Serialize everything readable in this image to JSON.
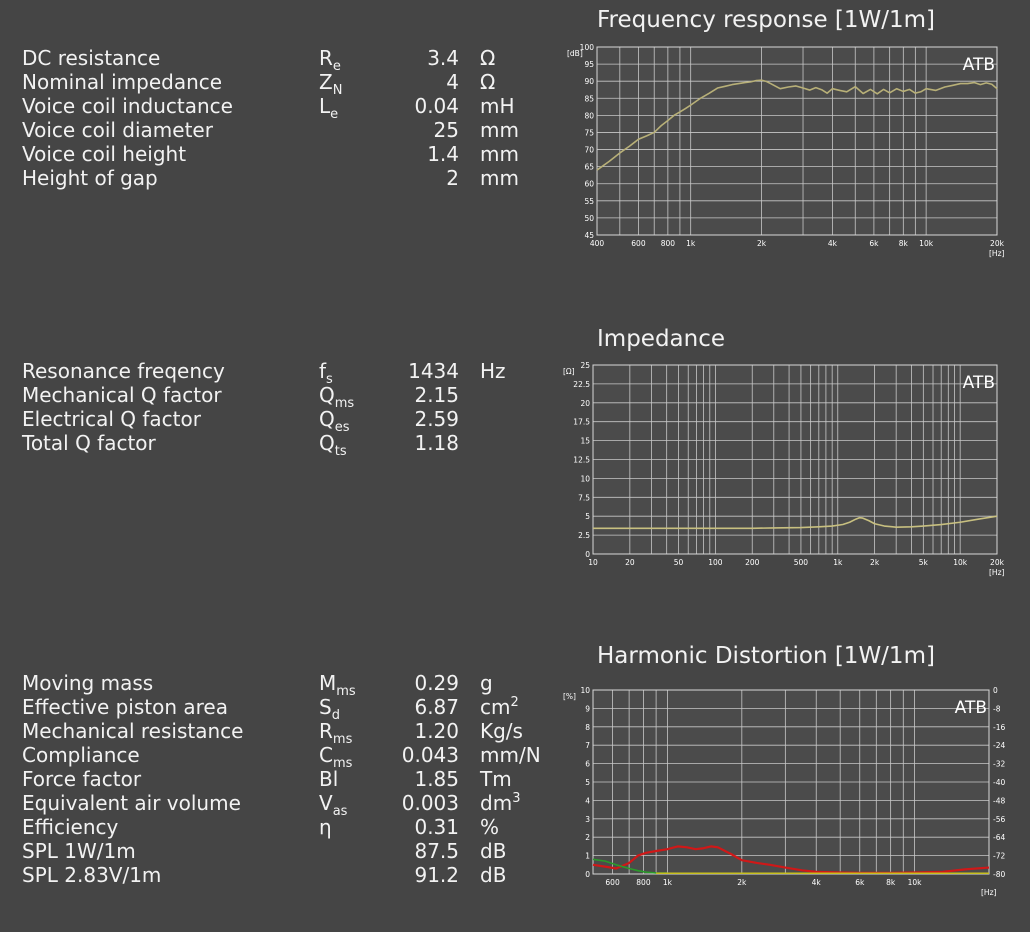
{
  "param_groups": [
    {
      "top": 46,
      "rows": [
        {
          "name": "DC resistance",
          "sym": "R",
          "sub": "e",
          "value": "3.4",
          "unit": "Ω"
        },
        {
          "name": "Nominal impedance",
          "sym": "Z",
          "sub": "N",
          "value": "4",
          "unit": "Ω"
        },
        {
          "name": "Voice coil inductance",
          "sym": "L",
          "sub": "e",
          "value": "0.04",
          "unit": "mH"
        },
        {
          "name": "Voice coil diameter",
          "sym": "",
          "sub": "",
          "value": "25",
          "unit": "mm"
        },
        {
          "name": "Voice coil height",
          "sym": "",
          "sub": "",
          "value": "1.4",
          "unit": "mm"
        },
        {
          "name": "Height of gap",
          "sym": "",
          "sub": "",
          "value": "2",
          "unit": "mm"
        }
      ]
    },
    {
      "top": 359,
      "rows": [
        {
          "name": "Resonance freqency",
          "sym": "f",
          "sub": "s",
          "value": "1434",
          "unit": "Hz"
        },
        {
          "name": "Mechanical Q factor",
          "sym": "Q",
          "sub": "ms",
          "value": "2.15",
          "unit": ""
        },
        {
          "name": "Electrical Q factor",
          "sym": "Q",
          "sub": "es",
          "value": "2.59",
          "unit": ""
        },
        {
          "name": "Total Q factor",
          "sym": "Q",
          "sub": "ts",
          "value": "1.18",
          "unit": ""
        }
      ]
    },
    {
      "top": 671,
      "rows": [
        {
          "name": "Moving mass",
          "sym": "M",
          "sub": "ms",
          "value": "0.29",
          "unit": "g",
          "sup": ""
        },
        {
          "name": "Effective piston area",
          "sym": "S",
          "sub": "d",
          "value": "6.87",
          "unit": "cm",
          "sup": "2"
        },
        {
          "name": "Mechanical resistance",
          "sym": "R",
          "sub": "ms",
          "value": "1.20",
          "unit": "Kg/s",
          "sup": ""
        },
        {
          "name": "Compliance",
          "sym": "C",
          "sub": "ms",
          "value": "0.043",
          "unit": "mm/N",
          "sup": ""
        },
        {
          "name": "Force factor",
          "sym": "Bl",
          "sub": "",
          "value": "1.85",
          "unit": "Tm",
          "sup": ""
        },
        {
          "name": "Equivalent air volume",
          "sym": "V",
          "sub": "as",
          "value": "0.003",
          "unit": "dm",
          "sup": "3"
        },
        {
          "name": "Efficiency",
          "sym": "η",
          "sub": "",
          "value": "0.31",
          "unit": "%",
          "sup": ""
        },
        {
          "name": "SPL 1W/1m",
          "sym": "",
          "sub": "",
          "value": "87.5",
          "unit": "dB",
          "sup": ""
        },
        {
          "name": "SPL 2.83V/1m",
          "sym": "",
          "sub": "",
          "value": "91.2",
          "unit": "dB",
          "sup": ""
        }
      ]
    }
  ],
  "colors": {
    "background": "#454545",
    "plot_bg": "#4b4b4b",
    "grid": "#c8c8c8",
    "frequency_curve": "#b8b078",
    "impedance_curve": "#c8c080",
    "distortion_red": "#d01818",
    "distortion_green": "#2a9a2a",
    "distortion_yellow": "#c8c020"
  },
  "chart_data": [
    {
      "type": "line",
      "title": "Frequency response [1W/1m]",
      "watermark": "ATB",
      "yunit": "[dB]",
      "xunit": "[Hz]",
      "xscale": "log",
      "xlim": [
        400,
        20000
      ],
      "ylim": [
        45,
        100
      ],
      "yticks": [
        45,
        50,
        55,
        60,
        65,
        70,
        75,
        80,
        85,
        90,
        95,
        100
      ],
      "xticks": [
        400,
        600,
        800,
        1000,
        2000,
        4000,
        6000,
        8000,
        10000,
        20000
      ],
      "xtick_labels": [
        "400",
        "600",
        "800",
        "1k",
        "2k",
        "4k",
        "6k",
        "8k",
        "10k",
        "20k"
      ],
      "grid": true,
      "series": [
        {
          "x": [
            400,
            450,
            500,
            550,
            600,
            650,
            700,
            750,
            800,
            850,
            900,
            950,
            1000,
            1100,
            1200,
            1300,
            1400,
            1500,
            1600,
            1700,
            1800,
            1900,
            2000,
            2100,
            2200,
            2400,
            2600,
            2800,
            3000,
            3200,
            3400,
            3600,
            3800,
            4000,
            4300,
            4600,
            5000,
            5400,
            5800,
            6200,
            6600,
            7000,
            7500,
            8000,
            8500,
            9000,
            9500,
            10000,
            11000,
            12000,
            13000,
            14000,
            15000,
            16000,
            17000,
            18000,
            19000,
            20000
          ],
          "y": [
            64,
            66.5,
            69,
            71,
            73,
            74,
            75,
            77,
            78.5,
            80,
            81,
            82,
            83,
            85,
            86.5,
            88,
            88.5,
            89,
            89.3,
            89.6,
            89.8,
            90.2,
            90.3,
            89.9,
            89.2,
            87.8,
            88.3,
            88.6,
            88.0,
            87.4,
            88.1,
            87.5,
            86.5,
            87.8,
            87.3,
            86.9,
            88.4,
            86.4,
            87.6,
            86.3,
            87.6,
            86.6,
            87.8,
            87.0,
            87.6,
            86.5,
            86.9,
            87.8,
            87.3,
            88.3,
            88.8,
            89.3,
            89.3,
            89.6,
            89.0,
            89.5,
            89.1,
            87.8
          ]
        }
      ]
    },
    {
      "type": "line",
      "title": "Impedance",
      "watermark": "ATB",
      "yunit": "[Ω]",
      "xunit": "[Hz]",
      "xscale": "log",
      "xlim": [
        10,
        20000
      ],
      "ylim": [
        0,
        25
      ],
      "yticks": [
        0,
        2.5,
        5,
        7.5,
        10,
        12.5,
        15,
        17.5,
        20,
        22.5,
        25
      ],
      "xticks": [
        10,
        20,
        50,
        100,
        200,
        500,
        1000,
        2000,
        5000,
        10000,
        20000
      ],
      "xtick_labels": [
        "10",
        "20",
        "50",
        "100",
        "200",
        "500",
        "1k",
        "2k",
        "5k",
        "10k",
        "20k"
      ],
      "grid": true,
      "series": [
        {
          "x": [
            10,
            20,
            50,
            100,
            200,
            300,
            500,
            700,
            900,
            1100,
            1250,
            1400,
            1500,
            1600,
            1800,
            2000,
            2400,
            3000,
            4000,
            5000,
            7000,
            10000,
            14000,
            20000
          ],
          "y": [
            3.4,
            3.4,
            3.4,
            3.4,
            3.4,
            3.45,
            3.5,
            3.6,
            3.7,
            3.9,
            4.2,
            4.6,
            4.8,
            4.75,
            4.4,
            4.0,
            3.7,
            3.55,
            3.6,
            3.7,
            3.9,
            4.2,
            4.6,
            5.0
          ]
        }
      ]
    },
    {
      "type": "line",
      "title": "Harmonic Distortion [1W/1m]",
      "watermark": "ATB",
      "yunit": "[%]",
      "xunit": "[Hz]",
      "xscale": "log",
      "xlim": [
        500,
        20000
      ],
      "ylim": [
        0,
        10
      ],
      "yticks": [
        0,
        1,
        2,
        3,
        4,
        5,
        6,
        7,
        8,
        9,
        10
      ],
      "yticks_right": [
        0,
        -8,
        -16,
        -24,
        -32,
        -40,
        -48,
        -56,
        -64,
        -72,
        -80
      ],
      "xticks": [
        600,
        800,
        1000,
        2000,
        4000,
        6000,
        8000,
        10000
      ],
      "xtick_labels": [
        "600",
        "800",
        "1k",
        "2k",
        "4k",
        "6k",
        "8k",
        "10k"
      ],
      "grid": true,
      "series": [
        {
          "color_key": "distortion_red",
          "x": [
            500,
            560,
            620,
            700,
            760,
            820,
            900,
            1000,
            1100,
            1200,
            1300,
            1400,
            1500,
            1600,
            1800,
            2000,
            2300,
            2600,
            3000,
            3500,
            4000,
            5000,
            6000,
            8000,
            10000,
            13000,
            16000,
            20000
          ],
          "y": [
            0.5,
            0.4,
            0.3,
            0.6,
            1.0,
            1.15,
            1.25,
            1.35,
            1.5,
            1.45,
            1.35,
            1.4,
            1.5,
            1.45,
            1.1,
            0.75,
            0.6,
            0.5,
            0.35,
            0.2,
            0.12,
            0.08,
            0.06,
            0.06,
            0.08,
            0.12,
            0.25,
            0.35
          ]
        },
        {
          "color_key": "distortion_green",
          "x": [
            500,
            560,
            620,
            700,
            760,
            820,
            900,
            1000
          ],
          "y": [
            0.8,
            0.7,
            0.5,
            0.3,
            0.18,
            0.1,
            0.06,
            0.05
          ]
        },
        {
          "color_key": "distortion_yellow",
          "x": [
            900,
            2000,
            5000,
            10000,
            20000
          ],
          "y": [
            0.04,
            0.04,
            0.04,
            0.04,
            0.04
          ]
        }
      ]
    }
  ]
}
